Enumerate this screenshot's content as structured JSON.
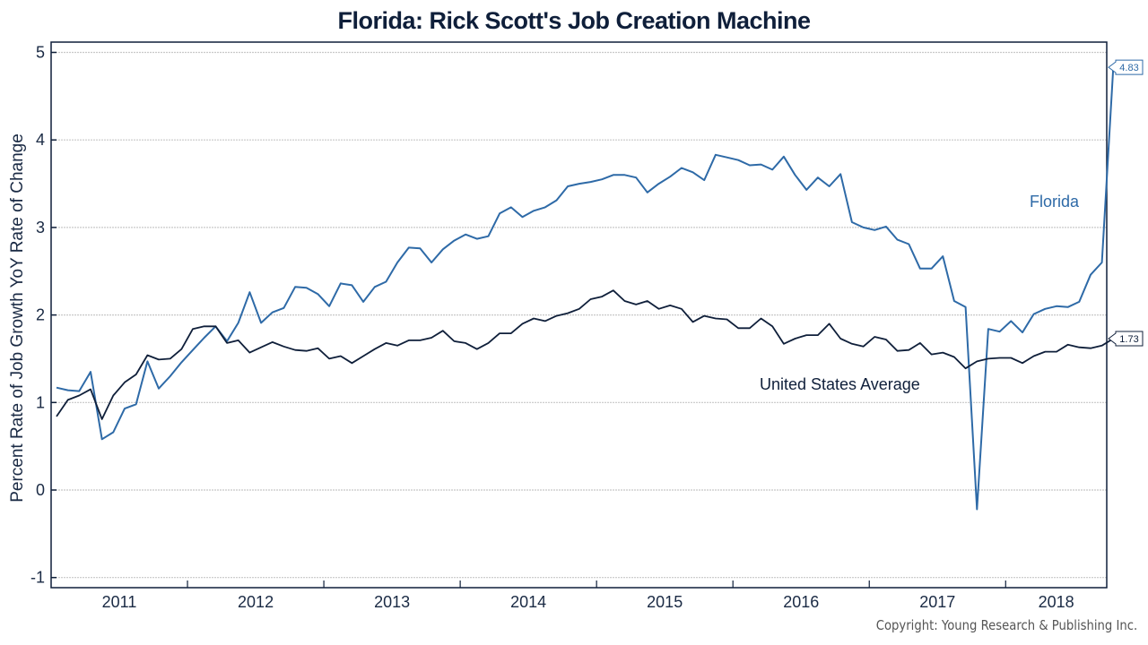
{
  "chart_data": {
    "type": "line",
    "title": "Florida: Rick Scott's Job Creation Machine",
    "xlabel": "",
    "ylabel": "Percent Rate of Job Growth YoY Rate of Change",
    "ylim": [
      -1.1,
      5.12
    ],
    "y_ticks": [
      "-1",
      "0",
      "1",
      "2",
      "3",
      "4",
      "5"
    ],
    "x_ticks": [
      "2011",
      "2012",
      "2013",
      "2014",
      "2015",
      "2016",
      "2017",
      "2018"
    ],
    "x_start": "2011-01",
    "x_frequency": "monthly",
    "grid": true,
    "series": [
      {
        "name": "Florida",
        "color": "#2e6aa7",
        "end_value": "4.83",
        "values": [
          1.17,
          1.14,
          1.13,
          1.35,
          0.58,
          0.66,
          0.93,
          0.98,
          1.47,
          1.16,
          1.3,
          1.46,
          1.6,
          1.74,
          1.87,
          1.7,
          1.91,
          2.26,
          1.91,
          2.03,
          2.08,
          2.32,
          2.31,
          2.24,
          2.1,
          2.36,
          2.34,
          2.15,
          2.32,
          2.38,
          2.6,
          2.77,
          2.76,
          2.6,
          2.75,
          2.85,
          2.92,
          2.87,
          2.9,
          3.16,
          3.23,
          3.12,
          3.19,
          3.23,
          3.31,
          3.47,
          3.5,
          3.52,
          3.55,
          3.6,
          3.6,
          3.57,
          3.4,
          3.5,
          3.58,
          3.68,
          3.63,
          3.54,
          3.83,
          3.8,
          3.77,
          3.71,
          3.72,
          3.66,
          3.81,
          3.6,
          3.43,
          3.57,
          3.47,
          3.61,
          3.06,
          3.0,
          2.97,
          3.01,
          2.86,
          2.81,
          2.53,
          2.53,
          2.67,
          2.16,
          2.09,
          -0.22,
          1.84,
          1.81,
          1.93,
          1.8,
          2.01,
          2.07,
          2.1,
          2.09,
          2.15,
          2.46,
          2.6,
          4.83
        ]
      },
      {
        "name": "United States Average",
        "color": "#0f1f3a",
        "end_value": "1.73",
        "values": [
          0.84,
          1.03,
          1.08,
          1.15,
          0.81,
          1.08,
          1.23,
          1.32,
          1.54,
          1.49,
          1.5,
          1.61,
          1.84,
          1.87,
          1.87,
          1.68,
          1.71,
          1.57,
          1.63,
          1.69,
          1.64,
          1.6,
          1.59,
          1.62,
          1.5,
          1.53,
          1.45,
          1.53,
          1.61,
          1.68,
          1.65,
          1.71,
          1.71,
          1.74,
          1.82,
          1.7,
          1.68,
          1.61,
          1.68,
          1.79,
          1.79,
          1.9,
          1.96,
          1.93,
          1.99,
          2.02,
          2.07,
          2.18,
          2.21,
          2.28,
          2.16,
          2.12,
          2.16,
          2.07,
          2.11,
          2.07,
          1.92,
          1.99,
          1.96,
          1.95,
          1.85,
          1.85,
          1.96,
          1.87,
          1.67,
          1.73,
          1.77,
          1.77,
          1.9,
          1.73,
          1.67,
          1.64,
          1.75,
          1.72,
          1.59,
          1.6,
          1.68,
          1.55,
          1.57,
          1.52,
          1.39,
          1.47,
          1.5,
          1.51,
          1.51,
          1.45,
          1.53,
          1.58,
          1.58,
          1.66,
          1.63,
          1.62,
          1.65,
          1.73
        ]
      }
    ],
    "annotations": [
      {
        "text": "Florida",
        "series": "Florida"
      },
      {
        "text": "United States Average",
        "series": "United States Average"
      }
    ]
  },
  "footer": {
    "copyright": "Copyright: Young Research & Publishing Inc."
  }
}
